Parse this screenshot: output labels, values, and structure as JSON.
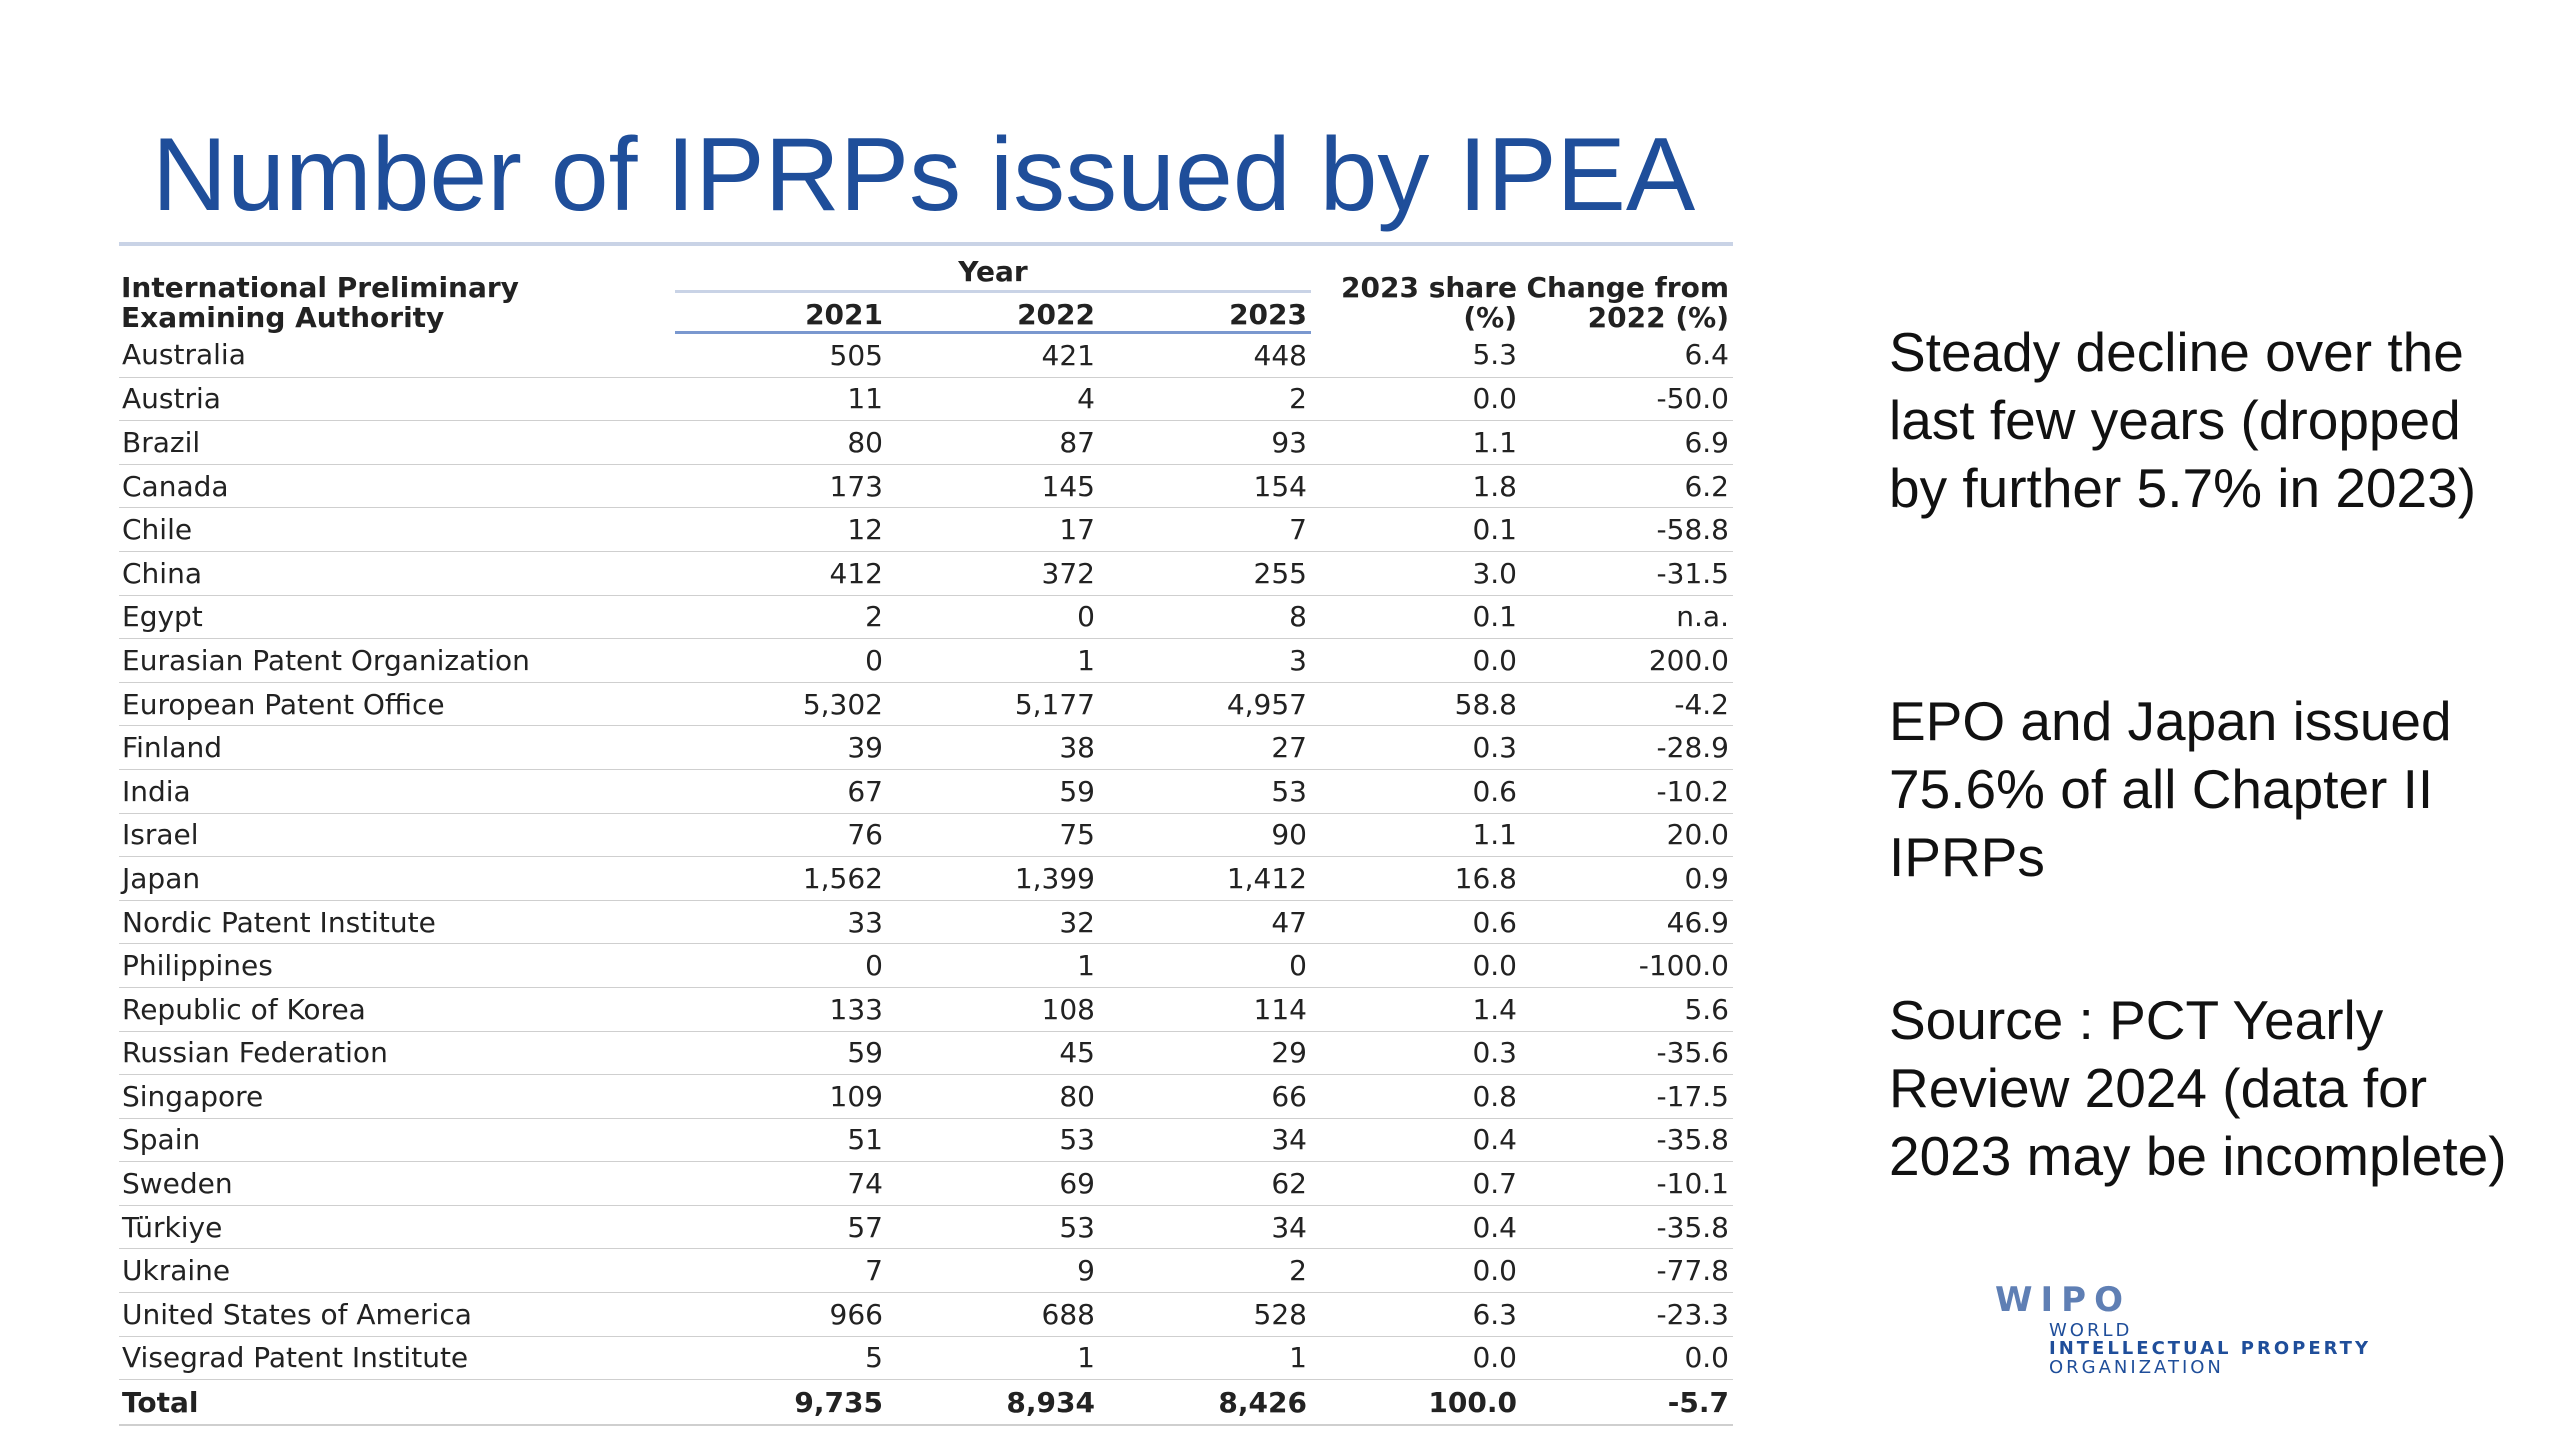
{
  "title": "Number of IPRPs issued by IPEA",
  "table": {
    "header": {
      "authority": "International Preliminary Examining Authority",
      "year_group": "Year",
      "years": [
        "2021",
        "2022",
        "2023"
      ],
      "share": "2023 share (%)",
      "change": "Change from 2022 (%)"
    },
    "rows": [
      {
        "name": "Australia",
        "y2021": "505",
        "y2022": "421",
        "y2023": "448",
        "share": "5.3",
        "change": "6.4"
      },
      {
        "name": "Austria",
        "y2021": "11",
        "y2022": "4",
        "y2023": "2",
        "share": "0.0",
        "change": "-50.0"
      },
      {
        "name": "Brazil",
        "y2021": "80",
        "y2022": "87",
        "y2023": "93",
        "share": "1.1",
        "change": "6.9"
      },
      {
        "name": "Canada",
        "y2021": "173",
        "y2022": "145",
        "y2023": "154",
        "share": "1.8",
        "change": "6.2"
      },
      {
        "name": "Chile",
        "y2021": "12",
        "y2022": "17",
        "y2023": "7",
        "share": "0.1",
        "change": "-58.8"
      },
      {
        "name": "China",
        "y2021": "412",
        "y2022": "372",
        "y2023": "255",
        "share": "3.0",
        "change": "-31.5"
      },
      {
        "name": "Egypt",
        "y2021": "2",
        "y2022": "0",
        "y2023": "8",
        "share": "0.1",
        "change": "n.a."
      },
      {
        "name": "Eurasian Patent Organization",
        "y2021": "0",
        "y2022": "1",
        "y2023": "3",
        "share": "0.0",
        "change": "200.0"
      },
      {
        "name": "European Patent Office",
        "y2021": "5,302",
        "y2022": "5,177",
        "y2023": "4,957",
        "share": "58.8",
        "change": "-4.2"
      },
      {
        "name": "Finland",
        "y2021": "39",
        "y2022": "38",
        "y2023": "27",
        "share": "0.3",
        "change": "-28.9"
      },
      {
        "name": "India",
        "y2021": "67",
        "y2022": "59",
        "y2023": "53",
        "share": "0.6",
        "change": "-10.2"
      },
      {
        "name": "Israel",
        "y2021": "76",
        "y2022": "75",
        "y2023": "90",
        "share": "1.1",
        "change": "20.0"
      },
      {
        "name": "Japan",
        "y2021": "1,562",
        "y2022": "1,399",
        "y2023": "1,412",
        "share": "16.8",
        "change": "0.9"
      },
      {
        "name": "Nordic Patent Institute",
        "y2021": "33",
        "y2022": "32",
        "y2023": "47",
        "share": "0.6",
        "change": "46.9"
      },
      {
        "name": "Philippines",
        "y2021": "0",
        "y2022": "1",
        "y2023": "0",
        "share": "0.0",
        "change": "-100.0"
      },
      {
        "name": "Republic of Korea",
        "y2021": "133",
        "y2022": "108",
        "y2023": "114",
        "share": "1.4",
        "change": "5.6"
      },
      {
        "name": "Russian Federation",
        "y2021": "59",
        "y2022": "45",
        "y2023": "29",
        "share": "0.3",
        "change": "-35.6"
      },
      {
        "name": "Singapore",
        "y2021": "109",
        "y2022": "80",
        "y2023": "66",
        "share": "0.8",
        "change": "-17.5"
      },
      {
        "name": "Spain",
        "y2021": "51",
        "y2022": "53",
        "y2023": "34",
        "share": "0.4",
        "change": "-35.8"
      },
      {
        "name": "Sweden",
        "y2021": "74",
        "y2022": "69",
        "y2023": "62",
        "share": "0.7",
        "change": "-10.1"
      },
      {
        "name": "Türkiye",
        "y2021": "57",
        "y2022": "53",
        "y2023": "34",
        "share": "0.4",
        "change": "-35.8"
      },
      {
        "name": "Ukraine",
        "y2021": "7",
        "y2022": "9",
        "y2023": "2",
        "share": "0.0",
        "change": "-77.8"
      },
      {
        "name": "United States of America",
        "y2021": "966",
        "y2022": "688",
        "y2023": "528",
        "share": "6.3",
        "change": "-23.3"
      },
      {
        "name": "Visegrad Patent Institute",
        "y2021": "5",
        "y2022": "1",
        "y2023": "1",
        "share": "0.0",
        "change": "0.0"
      }
    ],
    "total": {
      "name": "Total",
      "y2021": "9,735",
      "y2022": "8,934",
      "y2023": "8,426",
      "share": "100.0",
      "change": "-5.7"
    }
  },
  "notes": [
    "Steady decline over the last few years (dropped by further 5.7% in 2023)",
    "EPO and Japan issued 75.6% of all Chapter II IPRPs",
    "Source : PCT Yearly Review 2024 (data for 2023 may be incomplete)"
  ],
  "logo": {
    "mark": "WIPO",
    "line1": "WORLD",
    "line2": "INTELLECTUAL PROPERTY",
    "line3": "ORGANIZATION"
  },
  "colors": {
    "title": "#1f4e9a",
    "header_rule": "#7a98cf",
    "logo": "#5f7fb4"
  }
}
